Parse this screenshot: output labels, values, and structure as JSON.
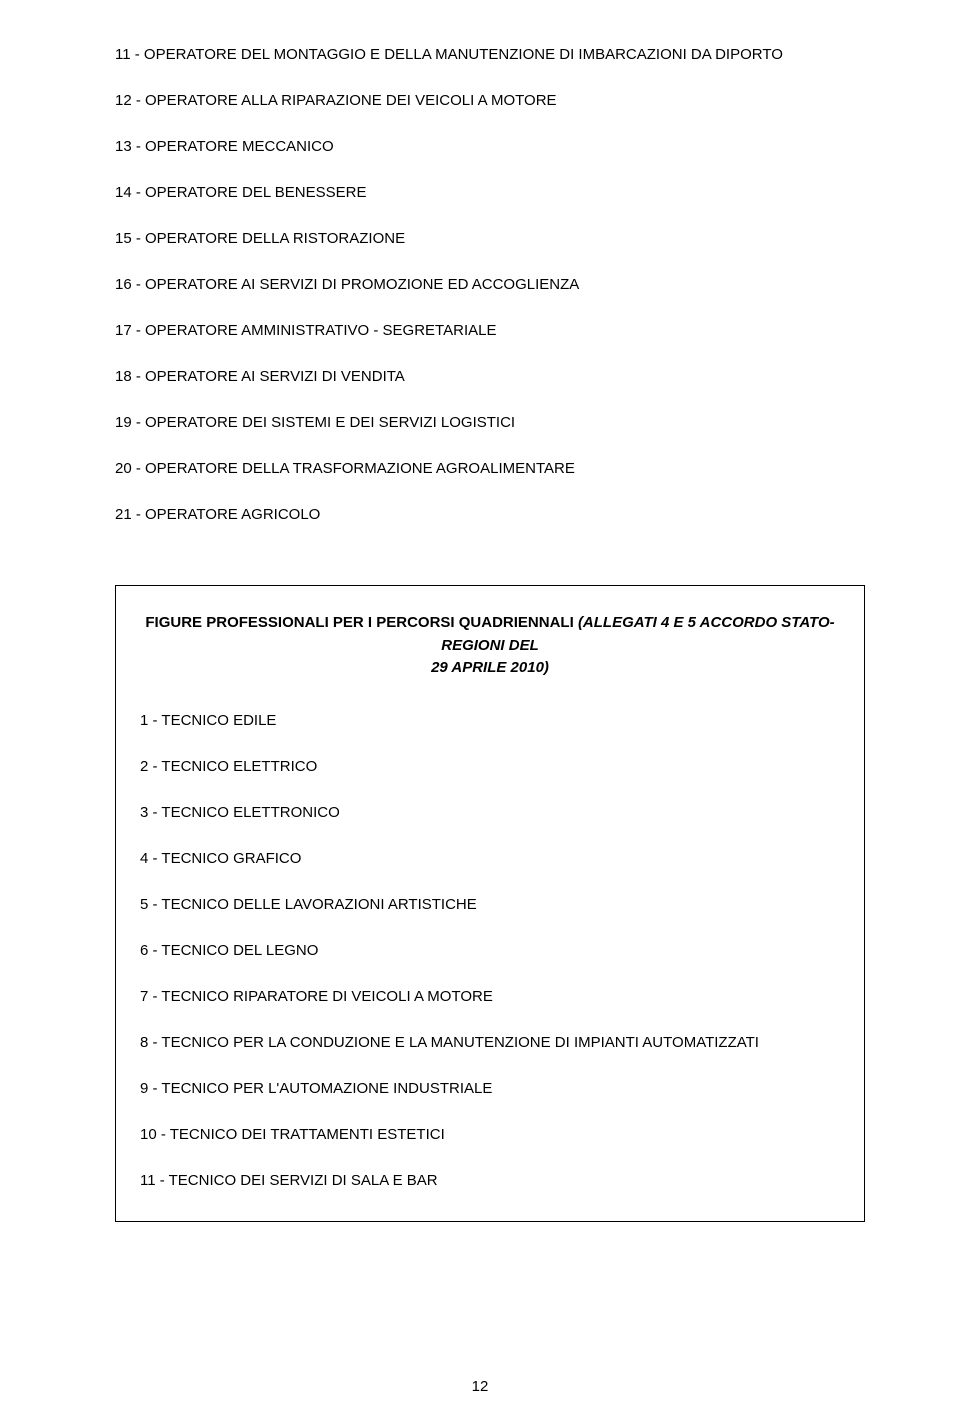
{
  "list1": [
    "11 - OPERATORE DEL MONTAGGIO E DELLA MANUTENZIONE DI IMBARCAZIONI DA DIPORTO",
    "12 - OPERATORE ALLA RIPARAZIONE DEI VEICOLI A MOTORE",
    "13 - OPERATORE MECCANICO",
    "14 - OPERATORE DEL BENESSERE",
    "15 - OPERATORE DELLA RISTORAZIONE",
    "16 - OPERATORE AI SERVIZI DI PROMOZIONE ED ACCOGLIENZA",
    "17 - OPERATORE AMMINISTRATIVO - SEGRETARIALE",
    "18 - OPERATORE AI SERVIZI DI VENDITA",
    "19 - OPERATORE DEI SISTEMI E DEI SERVIZI LOGISTICI",
    "20 - OPERATORE DELLA TRASFORMAZIONE AGROALIMENTARE",
    "21 - OPERATORE AGRICOLO"
  ],
  "box": {
    "title_line1_prefix": "FIGURE PROFESSIONALI PER I PERCORSI QUADRIENNALI ",
    "title_line1_italic": "(ALLEGATI 4 E 5 ACCORDO STATO-REGIONI DEL",
    "title_line2": "29 APRILE  2010)"
  },
  "list2": [
    "1 - TECNICO EDILE",
    "2 - TECNICO ELETTRICO",
    "3 - TECNICO ELETTRONICO",
    "4 - TECNICO GRAFICO",
    "5 - TECNICO DELLE LAVORAZIONI ARTISTICHE",
    "6 - TECNICO DEL LEGNO",
    "7 - TECNICO RIPARATORE DI VEICOLI A MOTORE",
    "8 - TECNICO PER LA CONDUZIONE E LA MANUTENZIONE DI IMPIANTI AUTOMATIZZATI",
    "9 - TECNICO PER L'AUTOMAZIONE INDUSTRIALE",
    "10 - TECNICO DEI TRATTAMENTI ESTETICI",
    "11 - TECNICO DEI SERVIZI DI SALA E BAR"
  ],
  "page_number": "12"
}
